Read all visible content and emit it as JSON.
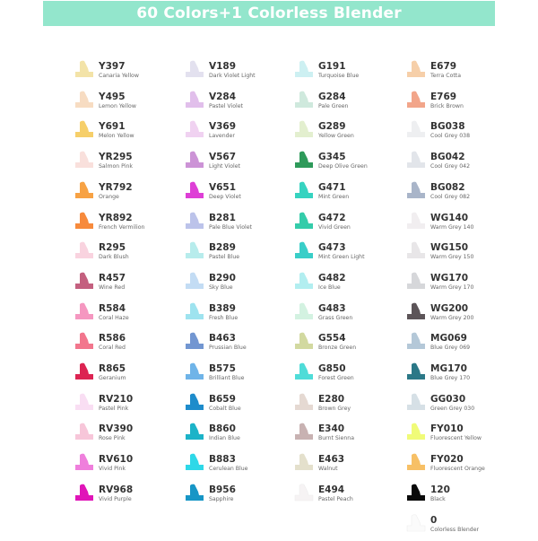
{
  "header": {
    "title": "60 Colors+1 Colorless Blender",
    "background": "#93e6cc"
  },
  "columns": [
    [
      {
        "code": "Y397",
        "name": "Canaria Yellow",
        "color": "#f3e3a8"
      },
      {
        "code": "Y495",
        "name": "Lemon Yellow",
        "color": "#f7dcc2"
      },
      {
        "code": "Y691",
        "name": "Melon Yellow",
        "color": "#f6cf6a"
      },
      {
        "code": "YR295",
        "name": "Salmon Pink",
        "color": "#f9e0dc"
      },
      {
        "code": "YR792",
        "name": "Orange",
        "color": "#f7a244"
      },
      {
        "code": "YR892",
        "name": "French Vermilion",
        "color": "#f78a3c"
      },
      {
        "code": "R295",
        "name": "Dark Blush",
        "color": "#f9d3df"
      },
      {
        "code": "R457",
        "name": "Wine Red",
        "color": "#c4607f"
      },
      {
        "code": "R584",
        "name": "Coral Haze",
        "color": "#f597c0"
      },
      {
        "code": "R586",
        "name": "Coral Red",
        "color": "#f2768d"
      },
      {
        "code": "R865",
        "name": "Geranium",
        "color": "#dc2452"
      },
      {
        "code": "RV210",
        "name": "Pastel Pink",
        "color": "#f9def3"
      },
      {
        "code": "RV390",
        "name": "Rose Pink",
        "color": "#f7c6d9"
      },
      {
        "code": "RV610",
        "name": "Vivid Pink",
        "color": "#ef7fdc"
      },
      {
        "code": "RV968",
        "name": "Vivid Purple",
        "color": "#e015b8"
      }
    ],
    [
      {
        "code": "V189",
        "name": "Dark Violet Light",
        "color": "#e3e1ef"
      },
      {
        "code": "V284",
        "name": "Pastel Violet",
        "color": "#e1bfeb"
      },
      {
        "code": "V369",
        "name": "Lavender",
        "color": "#f0d2f1"
      },
      {
        "code": "V567",
        "name": "Light Violet",
        "color": "#cc93d6"
      },
      {
        "code": "V651",
        "name": "Deep Violet",
        "color": "#de3fd6"
      },
      {
        "code": "B281",
        "name": "Pale Blue Violet",
        "color": "#bcc3ea"
      },
      {
        "code": "B289",
        "name": "Pastel Blue",
        "color": "#b7ecec"
      },
      {
        "code": "B290",
        "name": "Sky Blue",
        "color": "#c3dcf4"
      },
      {
        "code": "B389",
        "name": "Fresh Blue",
        "color": "#9ee3ef"
      },
      {
        "code": "B463",
        "name": "Prussian Blue",
        "color": "#7296d1"
      },
      {
        "code": "B575",
        "name": "Brilliant Blue",
        "color": "#6fb4e8"
      },
      {
        "code": "B659",
        "name": "Cobalt Blue",
        "color": "#1e8ccb"
      },
      {
        "code": "B860",
        "name": "Indian Blue",
        "color": "#1cb3c8"
      },
      {
        "code": "B883",
        "name": "Cerulean Blue",
        "color": "#2ed8e8"
      },
      {
        "code": "B956",
        "name": "Sapphire",
        "color": "#1796c6"
      }
    ],
    [
      {
        "code": "G191",
        "name": "Turquoise Blue",
        "color": "#cdf0f2"
      },
      {
        "code": "G284",
        "name": "Pale Green",
        "color": "#cfe9dd"
      },
      {
        "code": "G289",
        "name": "Yellow Green",
        "color": "#e3efcf"
      },
      {
        "code": "G345",
        "name": "Deep Olive Green",
        "color": "#2e9a5a"
      },
      {
        "code": "G471",
        "name": "Mint Green",
        "color": "#36d3c0"
      },
      {
        "code": "G472",
        "name": "Vivid Green",
        "color": "#34ccaa"
      },
      {
        "code": "G473",
        "name": "Mint Green Light",
        "color": "#39cec8"
      },
      {
        "code": "G482",
        "name": "Ice Blue",
        "color": "#b2eef0"
      },
      {
        "code": "G483",
        "name": "Grass Green",
        "color": "#d3f2e1"
      },
      {
        "code": "G554",
        "name": "Bronze Green",
        "color": "#d2d9a0"
      },
      {
        "code": "G850",
        "name": "Forest Green",
        "color": "#4fdcd8"
      },
      {
        "code": "E280",
        "name": "Brown Grey",
        "color": "#e5d9d2"
      },
      {
        "code": "E340",
        "name": "Burnt Sienna",
        "color": "#c8b2b2"
      },
      {
        "code": "E463",
        "name": "Walnut",
        "color": "#e4e0cc"
      },
      {
        "code": "E494",
        "name": "Pastel Peach",
        "color": "#f6f3f4"
      }
    ],
    [
      {
        "code": "E679",
        "name": "Terra Cotta",
        "color": "#f6cfa9"
      },
      {
        "code": "E769",
        "name": "Brick Brown",
        "color": "#f2a58a"
      },
      {
        "code": "BG038",
        "name": "Cool Grey 038",
        "color": "#eeeff1"
      },
      {
        "code": "BG042",
        "name": "Cool Grey 042",
        "color": "#e2e5ea"
      },
      {
        "code": "BG082",
        "name": "Cool Grey 082",
        "color": "#a9b5c9"
      },
      {
        "code": "WG140",
        "name": "Warm Grey 140",
        "color": "#f1eef0"
      },
      {
        "code": "WG150",
        "name": "Warm Grey 150",
        "color": "#e8e6e8"
      },
      {
        "code": "WG170",
        "name": "Warm Grey 170",
        "color": "#d6d7da"
      },
      {
        "code": "WG200",
        "name": "Warm Grey 200",
        "color": "#5c5458"
      },
      {
        "code": "MG069",
        "name": "Blue Grey 069",
        "color": "#b4c8d8"
      },
      {
        "code": "MG170",
        "name": "Blue Grey 170",
        "color": "#2b7887"
      },
      {
        "code": "GG030",
        "name": "Green Grey 030",
        "color": "#d6e0e6"
      },
      {
        "code": "FY010",
        "name": "Fluorescent Yellow",
        "color": "#f0fb78"
      },
      {
        "code": "FY020",
        "name": "Fluorescent Orange",
        "color": "#f7c066"
      },
      {
        "code": "120",
        "name": "Black",
        "color": "#0a0a0a"
      },
      {
        "code": "0",
        "name": "Colorless Blender",
        "color": "#fbfbfb"
      }
    ]
  ]
}
